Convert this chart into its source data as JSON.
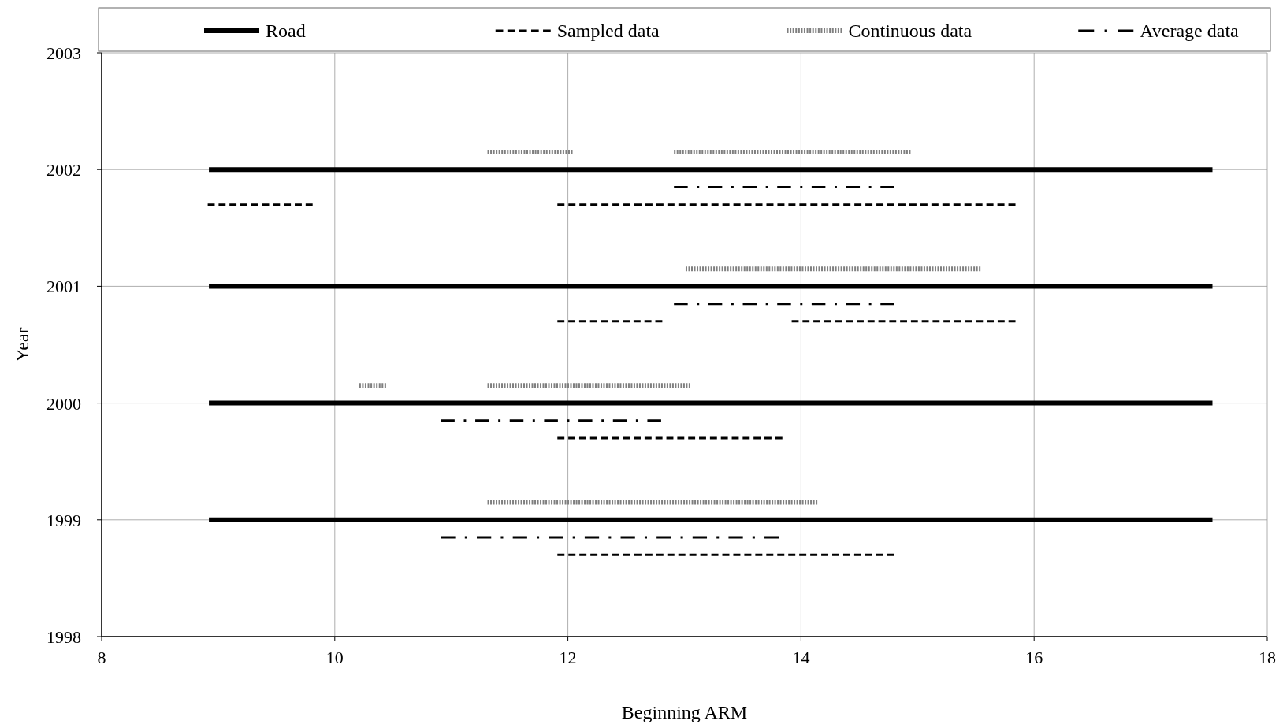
{
  "chart_data": {
    "type": "line",
    "xlabel": "Beginning ARM",
    "ylabel": "Year",
    "xlim": [
      8,
      18
    ],
    "xticks": [
      8,
      10,
      12,
      14,
      16,
      18
    ],
    "ylim": [
      1998,
      2003
    ],
    "yticks": [
      1998,
      1999,
      2000,
      2001,
      2002,
      2003
    ],
    "grid": true,
    "legend": "top",
    "series": [
      {
        "name": "Road",
        "color": "#000000",
        "line_style": "solid",
        "x": [
          8.92,
          17.53
        ],
        "values": [
          2002,
          2002
        ]
      },
      {
        "color": "#000000",
        "line_style": "solid",
        "x": [
          8.92,
          17.53
        ],
        "values": [
          2001,
          2001
        ]
      },
      {
        "color": "#000000",
        "line_style": "solid",
        "x": [
          8.92,
          17.53
        ],
        "values": [
          2000,
          2000
        ]
      },
      {
        "color": "#000000",
        "line_style": "solid",
        "x": [
          8.92,
          17.53
        ],
        "values": [
          1999,
          1999
        ]
      },
      {
        "name": "Sampled data",
        "color": "#000000",
        "line_style": "dashed",
        "x": [
          8.91,
          9.81
        ],
        "values": [
          2001.7,
          2001.7
        ]
      },
      {
        "color": "#000000",
        "line_style": "dashed",
        "x": [
          11.91,
          15.84
        ],
        "values": [
          2001.7,
          2001.7
        ]
      },
      {
        "color": "#000000",
        "line_style": "dashed",
        "x": [
          11.91,
          12.81
        ],
        "values": [
          2000.7,
          2000.7
        ]
      },
      {
        "color": "#000000",
        "line_style": "dashed",
        "x": [
          13.92,
          15.84
        ],
        "values": [
          2000.7,
          2000.7
        ]
      },
      {
        "color": "#000000",
        "line_style": "dashed",
        "x": [
          11.91,
          13.84
        ],
        "values": [
          1999.7,
          1999.7
        ]
      },
      {
        "color": "#000000",
        "line_style": "dashed",
        "x": [
          11.91,
          14.8
        ],
        "values": [
          1998.7,
          1998.7
        ]
      },
      {
        "name": "Continuous data",
        "color": "#7f7f7f",
        "line_style": "dotted",
        "x": [
          11.31,
          12.04
        ],
        "values": [
          2002.15,
          2002.15
        ]
      },
      {
        "color": "#7f7f7f",
        "line_style": "dotted",
        "x": [
          12.91,
          14.94
        ],
        "values": [
          2002.15,
          2002.15
        ]
      },
      {
        "color": "#7f7f7f",
        "line_style": "dotted",
        "x": [
          13.01,
          15.54
        ],
        "values": [
          2001.15,
          2001.15
        ]
      },
      {
        "color": "#7f7f7f",
        "line_style": "dotted",
        "x": [
          10.21,
          10.44
        ],
        "values": [
          2000.15,
          2000.15
        ]
      },
      {
        "color": "#7f7f7f",
        "line_style": "dotted",
        "x": [
          11.31,
          13.05
        ],
        "values": [
          2000.15,
          2000.15
        ]
      },
      {
        "color": "#7f7f7f",
        "line_style": "dotted",
        "x": [
          11.31,
          14.14
        ],
        "values": [
          1999.15,
          1999.15
        ]
      },
      {
        "name": "Average data",
        "color": "#000000",
        "line_style": "dashdot",
        "x": [
          12.91,
          14.8
        ],
        "values": [
          2001.85,
          2001.85
        ]
      },
      {
        "color": "#000000",
        "line_style": "dashdot",
        "x": [
          12.91,
          14.8
        ],
        "values": [
          2000.85,
          2000.85
        ]
      },
      {
        "color": "#000000",
        "line_style": "dashdot",
        "x": [
          10.91,
          12.8
        ],
        "values": [
          1999.85,
          1999.85
        ]
      },
      {
        "color": "#000000",
        "line_style": "dashdot",
        "x": [
          10.91,
          13.81
        ],
        "values": [
          1998.85,
          1998.85
        ]
      }
    ]
  }
}
